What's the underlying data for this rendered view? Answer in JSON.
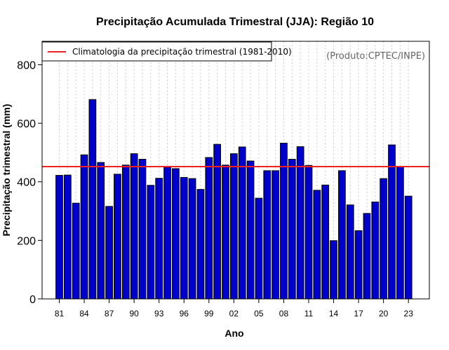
{
  "chart_data": {
    "type": "bar",
    "title": "Precipitação Acumulada Trimestral (JJA): Região 10",
    "xlabel": "Ano",
    "ylabel": "Precipitação trimestral (mm)",
    "credit": "(Produto:CPTEC/INPE)",
    "ylim": [
      0,
      880
    ],
    "y_ticks": [
      0,
      200,
      400,
      600,
      800
    ],
    "years": [
      1981,
      1982,
      1983,
      1984,
      1985,
      1986,
      1987,
      1988,
      1989,
      1990,
      1991,
      1992,
      1993,
      1994,
      1995,
      1996,
      1997,
      1998,
      1999,
      2000,
      2001,
      2002,
      2003,
      2004,
      2005,
      2006,
      2007,
      2008,
      2009,
      2010,
      2011,
      2012,
      2013,
      2014,
      2015,
      2016,
      2017,
      2018,
      2019,
      2020,
      2021,
      2022,
      2023
    ],
    "x_tick_labels": [
      "81",
      "84",
      "87",
      "90",
      "93",
      "96",
      "99",
      "02",
      "05",
      "08",
      "11",
      "14",
      "17",
      "20",
      "23"
    ],
    "x_tick_every": 3,
    "values": [
      422,
      423,
      327,
      492,
      681,
      466,
      316,
      426,
      457,
      496,
      477,
      388,
      412,
      450,
      445,
      415,
      411,
      374,
      483,
      528,
      457,
      496,
      519,
      471,
      344,
      438,
      438,
      532,
      477,
      520,
      456,
      371,
      389,
      199,
      438,
      321,
      233,
      292,
      331,
      411,
      526,
      452,
      351
    ],
    "climatology": {
      "label": "Climatologia da precipitação trimestral (1981-2010)",
      "value": 452
    },
    "grid": "vertical-dotted",
    "legend_position": "top-left",
    "colors": {
      "bar_fill": "#0000cc",
      "bar_stroke": "#000000",
      "climatology_line": "#ee2222",
      "grid": "#cccccc"
    }
  }
}
